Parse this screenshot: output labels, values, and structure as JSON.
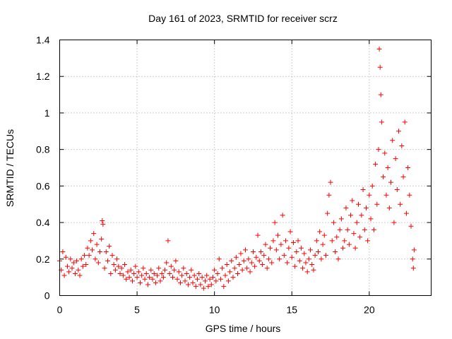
{
  "chart_data": {
    "type": "scatter",
    "title": "Day 161 of 2023, SRMTID for receiver scrz",
    "xlabel": "GPS time / hours",
    "ylabel": "SRMTID / TECUs",
    "xlim": [
      0,
      24
    ],
    "ylim": [
      0,
      1.4
    ],
    "xticks": [
      0,
      5,
      10,
      15,
      20
    ],
    "xtick_labels": [
      "0",
      "5",
      "10",
      "15",
      "20"
    ],
    "yticks": [
      0,
      0.2,
      0.4,
      0.6,
      0.8,
      1,
      1.2,
      1.4
    ],
    "ytick_labels": [
      "0",
      "0.2",
      "0.4",
      "0.6",
      "0.8",
      "1",
      "1.2",
      "1.4"
    ],
    "grid": true,
    "marker": "plus",
    "color": "#ff0000",
    "series": [
      {
        "name": "SRMTID",
        "points": [
          [
            0.0,
            0.19
          ],
          [
            0.1,
            0.14
          ],
          [
            0.2,
            0.24
          ],
          [
            0.3,
            0.11
          ],
          [
            0.4,
            0.21
          ],
          [
            0.5,
            0.16
          ],
          [
            0.6,
            0.13
          ],
          [
            0.7,
            0.2
          ],
          [
            0.8,
            0.15
          ],
          [
            0.9,
            0.18
          ],
          [
            1.0,
            0.12
          ],
          [
            1.1,
            0.19
          ],
          [
            1.2,
            0.14
          ],
          [
            1.3,
            0.11
          ],
          [
            1.4,
            0.2
          ],
          [
            1.5,
            0.16
          ],
          [
            1.6,
            0.22
          ],
          [
            1.7,
            0.17
          ],
          [
            1.8,
            0.26
          ],
          [
            1.9,
            0.22
          ],
          [
            2.0,
            0.3
          ],
          [
            2.1,
            0.25
          ],
          [
            2.2,
            0.34
          ],
          [
            2.3,
            0.2
          ],
          [
            2.4,
            0.28
          ],
          [
            2.5,
            0.18
          ],
          [
            2.6,
            0.24
          ],
          [
            2.7,
            0.31
          ],
          [
            2.75,
            0.41
          ],
          [
            2.8,
            0.39
          ],
          [
            2.9,
            0.15
          ],
          [
            3.0,
            0.24
          ],
          [
            3.1,
            0.19
          ],
          [
            3.2,
            0.27
          ],
          [
            3.3,
            0.12
          ],
          [
            3.4,
            0.22
          ],
          [
            3.5,
            0.17
          ],
          [
            3.6,
            0.14
          ],
          [
            3.7,
            0.2
          ],
          [
            3.8,
            0.16
          ],
          [
            3.9,
            0.12
          ],
          [
            4.0,
            0.15
          ],
          [
            4.1,
            0.11
          ],
          [
            4.2,
            0.17
          ],
          [
            4.3,
            0.09
          ],
          [
            4.4,
            0.13
          ],
          [
            4.5,
            0.1
          ],
          [
            4.6,
            0.14
          ],
          [
            4.7,
            0.08
          ],
          [
            4.8,
            0.12
          ],
          [
            4.9,
            0.16
          ],
          [
            5.0,
            0.1
          ],
          [
            5.1,
            0.13
          ],
          [
            5.2,
            0.07
          ],
          [
            5.3,
            0.11
          ],
          [
            5.4,
            0.15
          ],
          [
            5.5,
            0.09
          ],
          [
            5.6,
            0.12
          ],
          [
            5.7,
            0.06
          ],
          [
            5.8,
            0.1
          ],
          [
            5.9,
            0.14
          ],
          [
            6.0,
            0.09
          ],
          [
            6.1,
            0.12
          ],
          [
            6.2,
            0.07
          ],
          [
            6.3,
            0.11
          ],
          [
            6.4,
            0.15
          ],
          [
            6.5,
            0.08
          ],
          [
            6.6,
            0.12
          ],
          [
            6.7,
            0.1
          ],
          [
            6.8,
            0.14
          ],
          [
            6.9,
            0.18
          ],
          [
            7.0,
            0.3
          ],
          [
            7.1,
            0.12
          ],
          [
            7.2,
            0.16
          ],
          [
            7.3,
            0.1
          ],
          [
            7.4,
            0.14
          ],
          [
            7.5,
            0.19
          ],
          [
            7.6,
            0.09
          ],
          [
            7.7,
            0.13
          ],
          [
            7.8,
            0.07
          ],
          [
            7.9,
            0.11
          ],
          [
            8.0,
            0.15
          ],
          [
            8.1,
            0.08
          ],
          [
            8.2,
            0.12
          ],
          [
            8.3,
            0.06
          ],
          [
            8.4,
            0.1
          ],
          [
            8.5,
            0.14
          ],
          [
            8.6,
            0.07
          ],
          [
            8.7,
            0.11
          ],
          [
            8.8,
            0.05
          ],
          [
            8.9,
            0.09
          ],
          [
            9.0,
            0.12
          ],
          [
            9.1,
            0.06
          ],
          [
            9.2,
            0.1
          ],
          [
            9.3,
            0.04
          ],
          [
            9.4,
            0.08
          ],
          [
            9.5,
            0.11
          ],
          [
            9.6,
            0.05
          ],
          [
            9.7,
            0.09
          ],
          [
            9.8,
            0.06
          ],
          [
            9.9,
            0.1
          ],
          [
            10.0,
            0.14
          ],
          [
            10.1,
            0.08
          ],
          [
            10.2,
            0.12
          ],
          [
            10.3,
            0.2
          ],
          [
            10.4,
            0.09
          ],
          [
            10.5,
            0.15
          ],
          [
            10.6,
            0.05
          ],
          [
            10.7,
            0.11
          ],
          [
            10.8,
            0.17
          ],
          [
            10.9,
            0.08
          ],
          [
            11.0,
            0.13
          ],
          [
            11.1,
            0.19
          ],
          [
            11.2,
            0.1
          ],
          [
            11.3,
            0.15
          ],
          [
            11.4,
            0.21
          ],
          [
            11.5,
            0.12
          ],
          [
            11.6,
            0.17
          ],
          [
            11.7,
            0.23
          ],
          [
            11.8,
            0.14
          ],
          [
            11.9,
            0.19
          ],
          [
            12.0,
            0.25
          ],
          [
            12.1,
            0.15
          ],
          [
            12.2,
            0.2
          ],
          [
            12.3,
            0.13
          ],
          [
            12.4,
            0.18
          ],
          [
            12.5,
            0.24
          ],
          [
            12.6,
            0.16
          ],
          [
            12.7,
            0.21
          ],
          [
            12.8,
            0.33
          ],
          [
            12.9,
            0.19
          ],
          [
            13.0,
            0.24
          ],
          [
            13.1,
            0.17
          ],
          [
            13.2,
            0.22
          ],
          [
            13.3,
            0.28
          ],
          [
            13.4,
            0.15
          ],
          [
            13.5,
            0.2
          ],
          [
            13.6,
            0.26
          ],
          [
            13.7,
            0.18
          ],
          [
            13.8,
            0.3
          ],
          [
            13.9,
            0.4
          ],
          [
            14.0,
            0.25
          ],
          [
            14.1,
            0.33
          ],
          [
            14.2,
            0.2
          ],
          [
            14.3,
            0.28
          ],
          [
            14.4,
            0.44
          ],
          [
            14.5,
            0.22
          ],
          [
            14.6,
            0.3
          ],
          [
            14.7,
            0.18
          ],
          [
            14.8,
            0.26
          ],
          [
            14.9,
            0.35
          ],
          [
            15.0,
            0.21
          ],
          [
            15.1,
            0.29
          ],
          [
            15.2,
            0.16
          ],
          [
            15.3,
            0.24
          ],
          [
            15.4,
            0.3
          ],
          [
            15.5,
            0.19
          ],
          [
            15.6,
            0.26
          ],
          [
            15.7,
            0.15
          ],
          [
            15.8,
            0.23
          ],
          [
            15.9,
            0.18
          ],
          [
            16.0,
            0.13
          ],
          [
            16.1,
            0.2
          ],
          [
            16.2,
            0.25
          ],
          [
            16.3,
            0.17
          ],
          [
            16.4,
            0.14
          ],
          [
            16.5,
            0.22
          ],
          [
            16.6,
            0.3
          ],
          [
            16.7,
            0.24
          ],
          [
            16.8,
            0.35
          ],
          [
            16.9,
            0.2
          ],
          [
            17.0,
            0.28
          ],
          [
            17.1,
            0.33
          ],
          [
            17.2,
            0.22
          ],
          [
            17.3,
            0.45
          ],
          [
            17.4,
            0.55
          ],
          [
            17.5,
            0.62
          ],
          [
            17.6,
            0.3
          ],
          [
            17.7,
            0.4
          ],
          [
            17.8,
            0.24
          ],
          [
            17.9,
            0.32
          ],
          [
            18.0,
            0.2
          ],
          [
            18.1,
            0.36
          ],
          [
            18.2,
            0.42
          ],
          [
            18.3,
            0.26
          ],
          [
            18.4,
            0.3
          ],
          [
            18.5,
            0.48
          ],
          [
            18.6,
            0.36
          ],
          [
            18.7,
            0.28
          ],
          [
            18.8,
            0.44
          ],
          [
            18.9,
            0.52
          ],
          [
            19.0,
            0.34
          ],
          [
            19.1,
            0.26
          ],
          [
            19.2,
            0.4
          ],
          [
            19.3,
            0.5
          ],
          [
            19.4,
            0.32
          ],
          [
            19.5,
            0.44
          ],
          [
            19.6,
            0.58
          ],
          [
            19.7,
            0.36
          ],
          [
            19.8,
            0.48
          ],
          [
            19.9,
            0.3
          ],
          [
            20.0,
            0.55
          ],
          [
            20.1,
            0.42
          ],
          [
            20.2,
            0.6
          ],
          [
            20.3,
            0.36
          ],
          [
            20.4,
            0.72
          ],
          [
            20.5,
            0.5
          ],
          [
            20.6,
            0.8
          ],
          [
            20.65,
            1.35
          ],
          [
            20.7,
            1.25
          ],
          [
            20.75,
            1.1
          ],
          [
            20.8,
            0.95
          ],
          [
            20.9,
            0.65
          ],
          [
            21.0,
            0.78
          ],
          [
            21.1,
            0.55
          ],
          [
            21.2,
            0.7
          ],
          [
            21.3,
            0.48
          ],
          [
            21.4,
            0.62
          ],
          [
            21.5,
            0.85
          ],
          [
            21.6,
            0.4
          ],
          [
            21.7,
            0.75
          ],
          [
            21.8,
            0.58
          ],
          [
            21.9,
            0.9
          ],
          [
            22.0,
            0.5
          ],
          [
            22.1,
            0.82
          ],
          [
            22.2,
            0.65
          ],
          [
            22.3,
            0.95
          ],
          [
            22.4,
            0.45
          ],
          [
            22.5,
            0.7
          ],
          [
            22.6,
            0.55
          ],
          [
            22.7,
            0.38
          ],
          [
            22.8,
            0.2
          ],
          [
            22.85,
            0.15
          ],
          [
            22.9,
            0.25
          ]
        ]
      }
    ]
  }
}
